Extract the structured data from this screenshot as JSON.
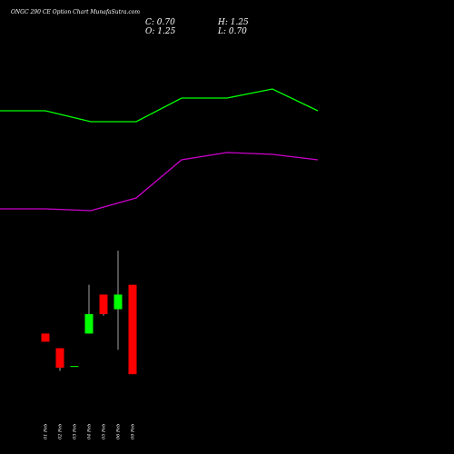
{
  "title": "ONGC 290  CE Option  Chart MunafaSutra.com",
  "ohlc": {
    "close_label": "C: 0.70",
    "high_label": "H: 1.25",
    "open_label": "O: 1.25",
    "low_label": "L: 0.70"
  },
  "colors": {
    "background": "#000000",
    "up_candle": "#00ff00",
    "down_candle": "#ff0000",
    "wick": "#cccccc",
    "green_line": "#00ff00",
    "magenta_line": "#cc00cc",
    "text": "#ffffff"
  },
  "chart_data": {
    "type": "candlestick",
    "categories": [
      "01 Feb",
      "02 Feb",
      "03 Feb",
      "04 Feb",
      "05 Feb",
      "06 Feb",
      "09 Feb"
    ],
    "candles": [
      {
        "open": 0.95,
        "high": 0.95,
        "low": 0.9,
        "close": 0.9
      },
      {
        "open": 0.86,
        "high": 0.86,
        "low": 0.72,
        "close": 0.74
      },
      {
        "open": 0.75,
        "high": 0.75,
        "low": 0.75,
        "close": 0.75
      },
      {
        "open": 0.95,
        "high": 1.25,
        "low": 0.95,
        "close": 1.07
      },
      {
        "open": 1.19,
        "high": 1.19,
        "low": 1.06,
        "close": 1.07
      },
      {
        "open": 1.1,
        "high": 1.46,
        "low": 0.85,
        "close": 1.19
      },
      {
        "open": 1.25,
        "high": 1.25,
        "low": 0.7,
        "close": 0.7
      }
    ],
    "ylim": [
      0.6,
      1.55
    ],
    "overlay_lines": [
      {
        "color": "#00ff00",
        "points": [
          [
            0,
            0.84
          ],
          [
            1,
            0.84
          ],
          [
            2,
            0.78
          ],
          [
            3,
            0.78
          ],
          [
            4,
            0.91
          ],
          [
            5,
            0.91
          ],
          [
            6,
            0.96
          ],
          [
            7,
            0.84
          ]
        ]
      },
      {
        "color": "#cc00cc",
        "points": [
          [
            0,
            0.3
          ],
          [
            1,
            0.3
          ],
          [
            2,
            0.29
          ],
          [
            3,
            0.36
          ],
          [
            4,
            0.57
          ],
          [
            5,
            0.61
          ],
          [
            6,
            0.6
          ],
          [
            7,
            0.57
          ]
        ]
      }
    ],
    "overlay_ylim": [
      0,
      1
    ]
  }
}
